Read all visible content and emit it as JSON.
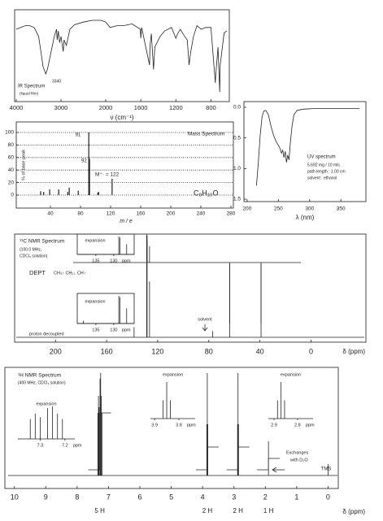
{
  "chart_data": [
    {
      "type": "line",
      "title": "IR Spectrum",
      "subtitle": "(liquid film)",
      "x_label": "ν (cm⁻¹)",
      "annotations": [
        "3340"
      ],
      "x": [
        4000,
        3900,
        3800,
        3700,
        3600,
        3500,
        3450,
        3400,
        3340,
        3300,
        3250,
        3200,
        3150,
        3100,
        3085,
        3060,
        3030,
        3000,
        2950,
        2930,
        2880,
        2800,
        2700,
        2500,
        2300,
        2100,
        2000,
        1950,
        1870,
        1800,
        1700,
        1605,
        1600,
        1590,
        1500,
        1495,
        1480,
        1455,
        1440,
        1400,
        1380,
        1330,
        1250,
        1200,
        1180,
        1150,
        1100,
        1070,
        1050,
        1030,
        1000,
        960,
        910,
        860,
        800,
        750,
        745,
        720,
        700,
        695,
        650,
        620
      ],
      "values": [
        80,
        82,
        84,
        84,
        82,
        72,
        55,
        38,
        30,
        36,
        48,
        60,
        72,
        80,
        68,
        78,
        65,
        72,
        55,
        68,
        62,
        80,
        85,
        88,
        90,
        90,
        88,
        82,
        84,
        84,
        86,
        80,
        70,
        82,
        40,
        62,
        75,
        35,
        60,
        68,
        72,
        78,
        82,
        70,
        75,
        80,
        72,
        68,
        40,
        55,
        72,
        84,
        80,
        82,
        82,
        20,
        30,
        60,
        10,
        40,
        76,
        78
      ],
      "xlim": [
        4000,
        600
      ],
      "ylim": [
        0,
        100
      ],
      "xticks": [
        4000,
        3000,
        2000,
        1600,
        1200,
        800
      ],
      "color": "#222222"
    },
    {
      "type": "bar",
      "title": "Mass Spectrum",
      "formula": "C₈H₁₀O",
      "molecular_ion_label": "M⁺· = 122",
      "x_label": "m / e",
      "y_label": "% of base peak",
      "x": [
        27,
        31,
        39,
        51,
        63,
        65,
        77,
        91,
        92,
        103,
        104,
        122
      ],
      "values": [
        6,
        5,
        9,
        9,
        5,
        12,
        7,
        100,
        58,
        4,
        5,
        26
      ],
      "xlim": [
        0,
        280
      ],
      "ylim": [
        0,
        100
      ],
      "xticks": [
        40,
        80,
        120,
        160,
        200,
        240,
        280
      ],
      "yticks": [
        0,
        20,
        40,
        60,
        80,
        100
      ],
      "grid": true,
      "color": "#222222"
    },
    {
      "type": "line",
      "title": "UV spectrum",
      "notes": [
        "5.692 mg / 10 mls",
        "path length : 1.00 cm",
        "solvent : ethanol"
      ],
      "x_label": "λ (nm)",
      "x": [
        215,
        218,
        221,
        224,
        227,
        230,
        234,
        238,
        242,
        246,
        250,
        253,
        255,
        257,
        259,
        261,
        263,
        265,
        267,
        269,
        272,
        275,
        280,
        290,
        310,
        340,
        380
      ],
      "values": [
        1.28,
        0.9,
        0.45,
        0.15,
        0.06,
        0.05,
        0.12,
        0.3,
        0.45,
        0.55,
        0.62,
        0.68,
        0.75,
        0.7,
        0.82,
        0.72,
        0.9,
        0.78,
        0.86,
        0.6,
        0.3,
        0.12,
        0.05,
        0.03,
        0.02,
        0.02,
        0.02
      ],
      "xlim": [
        195,
        390
      ],
      "ylim": [
        0,
        1.5
      ],
      "inverted_y": true,
      "xticks": [
        200,
        250,
        300,
        350
      ],
      "yticks": [
        {
          "value": 0,
          "label": "0.0"
        },
        0.5,
        {
          "value": 1,
          "label": "1.0"
        },
        1.5
      ],
      "color": "#222222"
    },
    {
      "type": "stick",
      "title": "¹³C NMR Spectrum",
      "subtitle": [
        "(100.0 MHz,",
        "CDCl₃ solution)"
      ],
      "dept_key": "CH₃↑  CH₂↓  CH↑",
      "solvent_label": "solvent",
      "x_label": "δ (ppm)",
      "xlim": [
        232,
        -43
      ],
      "xticks": [
        200,
        160,
        120,
        80,
        40,
        0
      ],
      "series": [
        {
          "name": "DEPT",
          "x": [
            128.6,
            128.3,
            126.4,
            63.6,
            39.1
          ],
          "values": [
            35,
            33,
            20,
            -75,
            -75
          ]
        },
        {
          "name": "proton decoupled",
          "x": [
            138.5,
            128.6,
            128.3,
            126.4,
            77.0,
            63.6,
            39.1
          ],
          "values": [
            10,
            100,
            95,
            55,
            6,
            72,
            72
          ]
        }
      ],
      "insets": [
        {
          "title": "expansion",
          "xlim": [
            140.2,
            124.3
          ],
          "xticks": [
            135,
            130
          ],
          "unit": "ppm"
        },
        {
          "title": "expansion",
          "xlim": [
            140.2,
            124.3
          ],
          "xticks": [
            135,
            130
          ],
          "unit": "ppm"
        }
      ]
    },
    {
      "type": "stick",
      "title": "¹H NMR Spectrum",
      "subtitle": "(400 MHz, CDCl₃ solution)",
      "exchange_note": [
        "Exchanges",
        "with D₂O"
      ],
      "tms_label": "TMS",
      "x_label": "δ (ppm)",
      "xlim": [
        10.2,
        -0.3
      ],
      "xticks": [
        10,
        9,
        8,
        7,
        6,
        5,
        4,
        3,
        2,
        1,
        0
      ],
      "x": [
        7.34,
        7.32,
        7.3,
        7.27,
        7.25,
        7.23,
        7.21,
        3.865,
        3.85,
        3.835,
        2.885,
        2.87,
        2.855,
        1.9,
        0
      ],
      "values": [
        55,
        70,
        60,
        85,
        90,
        70,
        55,
        45,
        90,
        45,
        45,
        90,
        45,
        30,
        10
      ],
      "integrals": {
        "x": [
          7.28,
          3.85,
          2.87,
          1.9
        ],
        "values": [
          5,
          2,
          2,
          1
        ],
        "value_labels": [
          "5 H",
          "2 H",
          "2 H",
          "1 H"
        ],
        "color": "#e53a2f"
      },
      "insets": [
        {
          "title": "expansion",
          "xlim": [
            7.39,
            7.16
          ],
          "xticks": [
            7.3,
            7.2
          ],
          "unit": "ppm"
        },
        {
          "title": "expansion",
          "xlim": [
            3.917,
            3.733
          ],
          "xticks": [
            3.9,
            3.8
          ],
          "unit": "ppm"
        },
        {
          "title": "expansion",
          "xlim": [
            2.924,
            2.734
          ],
          "xticks": [
            2.9,
            2.8
          ],
          "unit": "ppm"
        }
      ]
    }
  ]
}
